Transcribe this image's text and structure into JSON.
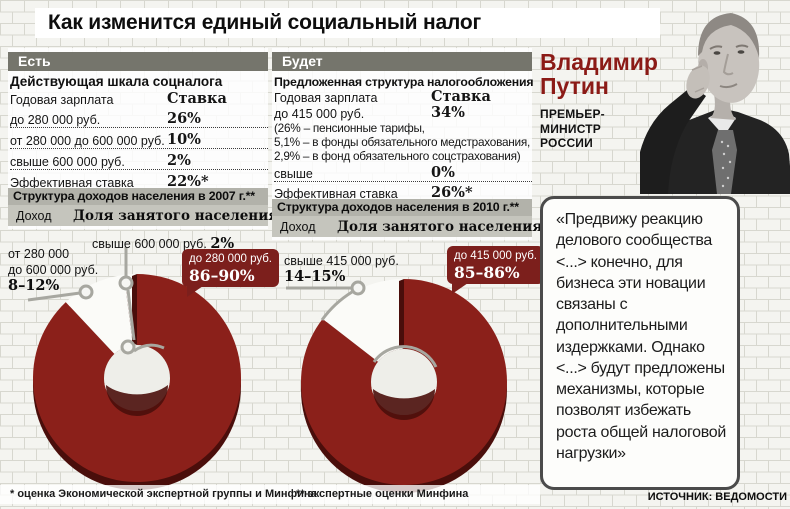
{
  "title": "Как изменится единый социальный налог",
  "now": {
    "header": "Есть",
    "subtitle": "Действующая шкала соцналога",
    "col_salary": "Годовая зарплата",
    "col_rate": "Ставка",
    "rows": [
      {
        "label": "до 280 000 руб.",
        "rate": "26%"
      },
      {
        "label": "от 280 000 до 600 000 руб.",
        "rate": "10%"
      },
      {
        "label": "свыше 600 000 руб.",
        "rate": "2%"
      }
    ],
    "effective_label": "Эффективная ставка",
    "effective_rate": "22%*"
  },
  "future": {
    "header": "Будет",
    "subtitle": "Предложенная структура налогообложения",
    "col_salary": "Годовая зарплата",
    "col_rate": "Ставка",
    "row_main": {
      "label": "до 415 000 руб.",
      "rate": "34%"
    },
    "breakdown": [
      "(26% – пенсионные тарифы,",
      "5,1% – в фонды обязательного медстрахования,",
      "2,9% – в фонд обязательного соцстрахования)"
    ],
    "row_above": {
      "label": "свыше",
      "rate": "0%"
    },
    "effective_label": "Эффективная ставка",
    "effective_rate": "26%*"
  },
  "pie2007": {
    "section_title": "Структура доходов населения в 2007 г.**",
    "col_income": "Доход",
    "col_share": "Доля занятого населения",
    "label_top": "свыше 600 000 руб.",
    "label_top_value": "2%",
    "label_left_line1": "от 280 000",
    "label_left_line2": "до 600 000 руб.",
    "label_left_value": "8–12%",
    "callout_label": "до 280 000 руб.",
    "callout_value": "86–90%"
  },
  "pie2010": {
    "section_title": "Структура доходов населения в 2010 г.**",
    "col_income": "Доход",
    "col_share": "Доля занятого населения",
    "label_left_line1": "свыше 415 000 руб.",
    "label_left_value": "14–15%",
    "callout_label": "до 415 000 руб.",
    "callout_value": "85–86%"
  },
  "putin": {
    "name_line1": "Владимир",
    "name_line2": "Путин",
    "role_line1": "ПРЕМЬЕР-",
    "role_line2": "МИНИСТР",
    "role_line3": "РОССИИ"
  },
  "quote": "«Предвижу реакцию делового сообщества <...> конечно, для бизнеса эти новации связаны с дополнительными издержками. Однако <...> будут предложены механизмы, которые позволят избежать роста общей налоговой нагрузки»",
  "source": "ИСТОЧНИК: ВЕДОМОСТИ",
  "footnote1": "* оценка Экономической экспертной группы и Минфина",
  "footnote2": "** экспертные оценки Минфина",
  "colors": {
    "accent_red": "#8b201a",
    "accent_red_dark": "#4a0e0b",
    "callout_red": "#7c1f1c",
    "bar_gray": "#75756c",
    "band_gray": "#b2b2aa",
    "band_gray_light": "#c5c5bd",
    "slice_white": "#fbfbf8",
    "leader_gray": "#a7a7a0"
  },
  "chart_data": [
    {
      "type": "pie",
      "donut": true,
      "title": "Структура доходов населения в 2007 г.**",
      "legend_position": "callouts",
      "labels": [
        "до 280 000 руб.",
        "от 280 000 до 600 000 руб.",
        "свыше 600 000 руб."
      ],
      "values_text": [
        "86–90%",
        "8–12%",
        "2%"
      ],
      "values": [
        88,
        10,
        2
      ]
    },
    {
      "type": "pie",
      "donut": true,
      "title": "Структура доходов населения в 2010 г.**",
      "legend_position": "callouts",
      "labels": [
        "до 415 000 руб.",
        "свыше 415 000 руб."
      ],
      "values_text": [
        "85–86%",
        "14–15%"
      ],
      "values": [
        85.5,
        14.5
      ]
    }
  ]
}
